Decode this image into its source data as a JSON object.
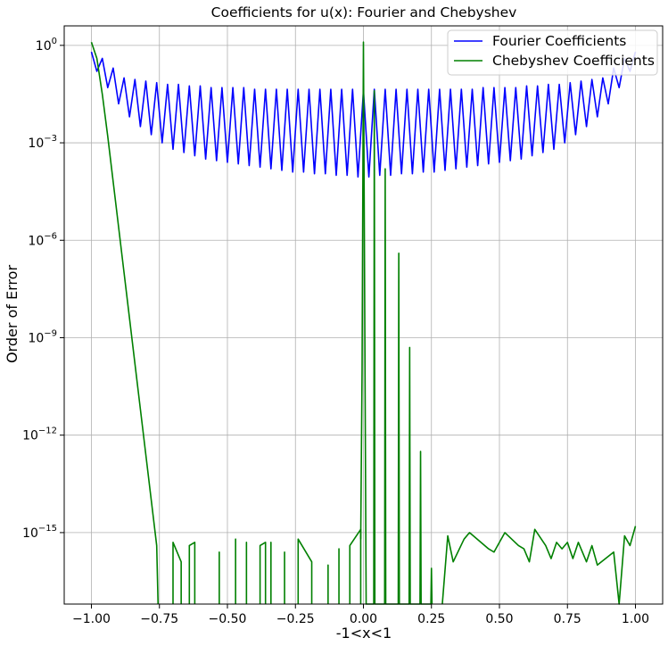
{
  "chart_data": {
    "type": "line",
    "title": "Coefficients for u(x): Fourier and Chebyshev",
    "xlabel": "-1<x<1",
    "ylabel": "Order of Error",
    "xlim": [
      -1.1,
      1.1
    ],
    "ylim_log10": [
      -17.2,
      0.6
    ],
    "yscale": "log",
    "grid": true,
    "legend_position": "top-right",
    "x_ticks": [
      -1.0,
      -0.75,
      -0.5,
      -0.25,
      0.0,
      0.25,
      0.5,
      0.75,
      1.0
    ],
    "x_tick_labels": [
      "−1.00",
      "−0.75",
      "−0.50",
      "−0.25",
      "0.00",
      "0.25",
      "0.50",
      "0.75",
      "1.00"
    ],
    "y_tick_exponents": [
      0,
      -3,
      -6,
      -9,
      -12,
      -15
    ],
    "y_tick_base": "10",
    "series": [
      {
        "name": "Fourier Coefficients",
        "color": "#0000ff",
        "pattern": "alternating_symmetric",
        "x_range": [
          -1.0,
          1.0
        ],
        "x_step": 0.02,
        "left_half_log10": {
          "peaks": [
            -0.2,
            -0.4,
            -0.7,
            -1.0,
            -1.05,
            -1.1,
            -1.15,
            -1.2,
            -1.2,
            -1.25,
            -1.25,
            -1.3,
            -1.3,
            -1.3,
            -1.3,
            -1.35,
            -1.35,
            -1.35,
            -1.35,
            -1.35,
            -1.35,
            -1.35,
            -1.35,
            -1.35,
            -1.35,
            -1.4
          ],
          "troughs": [
            -0.8,
            -1.3,
            -1.8,
            -2.2,
            -2.5,
            -2.75,
            -3.0,
            -3.2,
            -3.3,
            -3.4,
            -3.5,
            -3.55,
            -3.6,
            -3.65,
            -3.7,
            -3.75,
            -3.8,
            -3.85,
            -3.9,
            -3.9,
            -3.95,
            -3.95,
            -4.0,
            -4.0,
            -4.05,
            -4.2
          ]
        }
      },
      {
        "name": "Chebyshev Coefficients",
        "color": "#008000",
        "decay_x": [
          -1.0,
          -0.98,
          -0.96,
          -0.94,
          -0.92,
          -0.9,
          -0.88,
          -0.86,
          -0.84,
          -0.82,
          -0.8,
          -0.78,
          -0.76,
          -0.755
        ],
        "decay_log10": [
          0.1,
          -0.4,
          -1.5,
          -2.8,
          -4.2,
          -5.6,
          -7.0,
          -8.4,
          -9.8,
          -11.2,
          -12.6,
          -14.0,
          -15.4,
          -17.2
        ],
        "floor_segments_x": [
          [
            -0.7,
            -0.67
          ],
          [
            -0.64,
            -0.62
          ],
          [
            -0.53,
            -0.53
          ],
          [
            -0.47,
            -0.47
          ],
          [
            -0.43,
            -0.43
          ],
          [
            -0.38,
            -0.36
          ],
          [
            -0.34,
            -0.34
          ],
          [
            -0.29,
            -0.29
          ],
          [
            -0.24,
            -0.19
          ],
          [
            -0.13,
            -0.13
          ],
          [
            -0.09,
            -0.09
          ],
          [
            -0.05,
            -0.01
          ]
        ],
        "floor_segments_log10": [
          [
            -15.3,
            -15.9
          ],
          [
            -15.4,
            -15.3
          ],
          [
            -15.6,
            -15.6
          ],
          [
            -15.2,
            -15.2
          ],
          [
            -15.3,
            -15.3
          ],
          [
            -15.4,
            -15.3
          ],
          [
            -15.3,
            -15.3
          ],
          [
            -15.6,
            -15.6
          ],
          [
            -15.2,
            -15.9
          ],
          [
            -16.0,
            -16.0
          ],
          [
            -15.5,
            -15.5
          ],
          [
            -15.4,
            -14.9
          ]
        ],
        "spike_x": [
          0.0,
          0.04,
          0.08,
          0.13,
          0.17,
          0.21,
          0.25
        ],
        "spike_log10": [
          0.1,
          -1.4,
          -3.8,
          -6.4,
          -9.3,
          -12.5,
          -16.1
        ],
        "floor_right_x": [
          0.31,
          0.33,
          0.37,
          0.39,
          0.46,
          0.48,
          0.52,
          0.57,
          0.59,
          0.61,
          0.63,
          0.67,
          0.69,
          0.71,
          0.73,
          0.75,
          0.77,
          0.79,
          0.82,
          0.84,
          0.86,
          0.92,
          0.94,
          0.96,
          0.98,
          1.0
        ],
        "floor_right_log10": [
          -15.1,
          -15.9,
          -15.2,
          -15.0,
          -15.5,
          -15.6,
          -15.0,
          -15.4,
          -15.5,
          -15.9,
          -14.9,
          -15.4,
          -15.8,
          -15.3,
          -15.5,
          -15.3,
          -15.8,
          -15.3,
          -15.9,
          -15.4,
          -16.0,
          -15.6,
          -17.2,
          -15.1,
          -15.4,
          -14.8
        ]
      }
    ]
  }
}
